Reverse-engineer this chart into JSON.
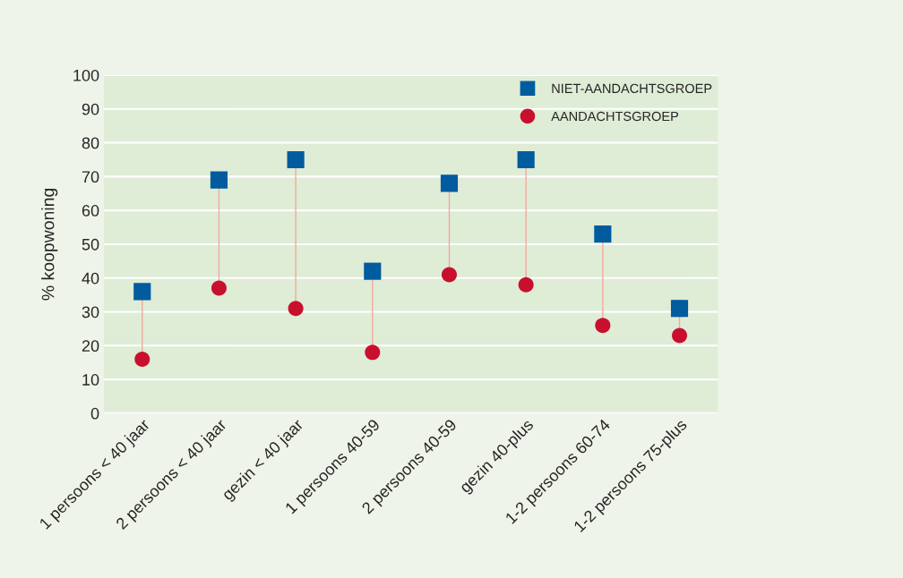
{
  "chart_data": {
    "type": "scatter",
    "ylabel": "% koopwoning",
    "categories": [
      "1 persoons < 40 jaar",
      "2 persoons < 40 jaar",
      "gezin < 40 jaar",
      "1 persoons 40-59",
      "2 persoons 40-59",
      "gezin 40-plus",
      "1-2 persoons 60-74",
      "1-2 persoons 75-plus"
    ],
    "series": [
      {
        "name": "NIET-AANDACHTSGROEP",
        "color": "#005b9f",
        "marker": "square",
        "values": [
          36,
          69,
          75,
          42,
          68,
          75,
          53,
          31
        ]
      },
      {
        "name": "AANDACHTSGROEP",
        "color": "#c8102e",
        "marker": "circle",
        "values": [
          16,
          37,
          31,
          18,
          41,
          38,
          26,
          23
        ]
      }
    ],
    "ylim": [
      0,
      100
    ],
    "yticks": [
      0,
      10,
      20,
      30,
      40,
      50,
      60,
      70,
      80,
      90,
      100
    ],
    "grid": "y",
    "legend": "top right"
  }
}
